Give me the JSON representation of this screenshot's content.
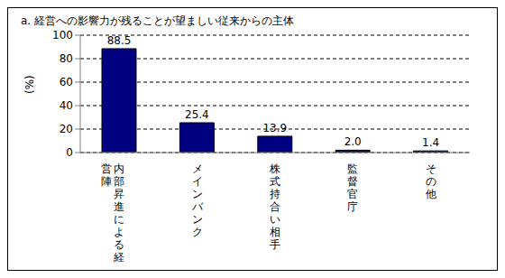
{
  "chart_data": {
    "type": "bar",
    "title": "a. 経営への影響力が残ることが望ましい従来からの主体",
    "y_label": "(%)",
    "categories": [
      "内部昇進による経営陣",
      "メインバンク",
      "株式持合い相手",
      "監督官庁",
      "その他"
    ],
    "values": [
      88.5,
      25.4,
      13.9,
      2.0,
      1.4
    ],
    "value_labels": [
      "88.5",
      "25.4",
      "13.9",
      "2.0",
      "1.4"
    ],
    "color": "#000080",
    "ylim": [
      0,
      100
    ],
    "yticks": [
      0,
      20,
      40,
      60,
      80,
      100
    ],
    "grid": true,
    "data_labels": true
  }
}
